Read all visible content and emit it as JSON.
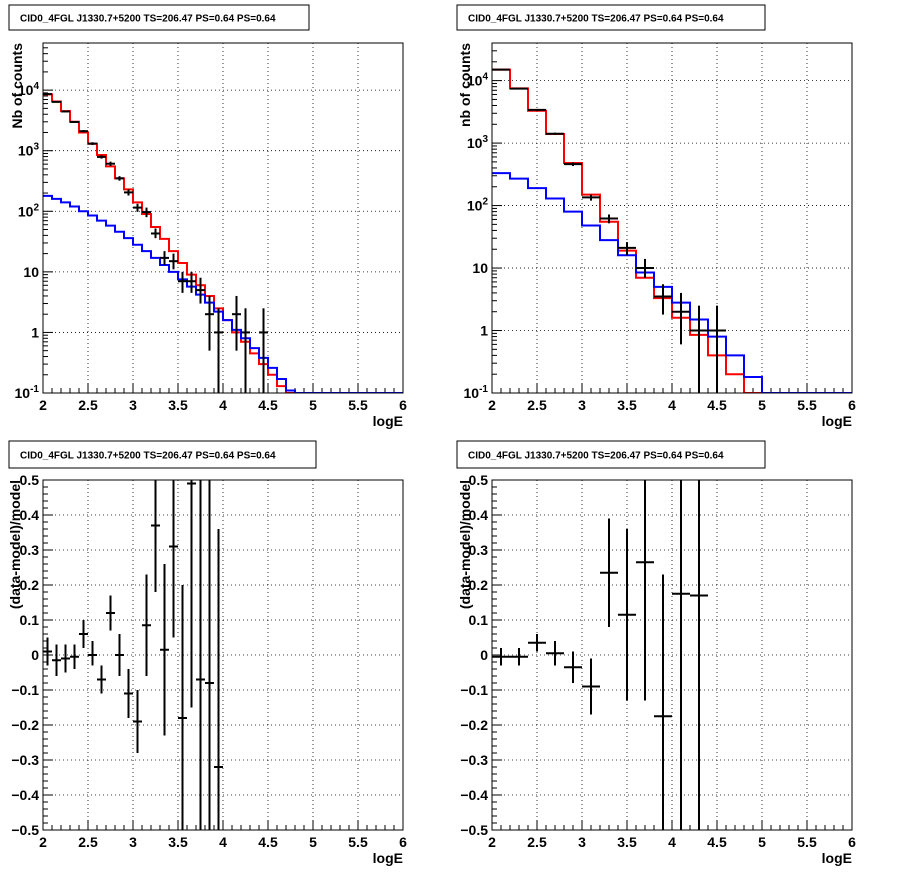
{
  "title": "CID0_4FGL J1330.7+5200 TS=206.47 PS=0.64 PS=0.64",
  "colors": {
    "data": "#000000",
    "total_model": "#ff0000",
    "source_model": "#0000ff",
    "grid": "#000000"
  },
  "chart_data": [
    {
      "id": "counts-fine",
      "type": "histogram",
      "title": "CID0_4FGL J1330.7+5200 TS=206.47 PS=0.64 PS=0.64",
      "xlabel": "logE",
      "ylabel": "Nb of counts",
      "xlim": [
        2,
        6
      ],
      "ylim": [
        0.1,
        60000
      ],
      "yscale": "log",
      "grid": true,
      "xticks": [
        "2",
        "2.5",
        "3",
        "3.5",
        "4",
        "4.5",
        "5",
        "5.5",
        "6"
      ],
      "yticks": [
        {
          "value": 0.1,
          "base": "10",
          "exp": "-1"
        },
        {
          "value": 1,
          "label": "1"
        },
        {
          "value": 10,
          "label": "10"
        },
        {
          "value": 100,
          "base": "10",
          "exp": "2"
        },
        {
          "value": 1000,
          "base": "10",
          "exp": "3"
        },
        {
          "value": 10000,
          "base": "10",
          "exp": "4"
        }
      ],
      "bin_edges": [
        2.0,
        2.1,
        2.2,
        2.3,
        2.4,
        2.5,
        2.6,
        2.7,
        2.8,
        2.9,
        3.0,
        3.1,
        3.2,
        3.3,
        3.4,
        3.5,
        3.6,
        3.7,
        3.8,
        3.9,
        4.0,
        4.1,
        4.2,
        4.3,
        4.4,
        4.5,
        4.6,
        4.7,
        4.8,
        4.9,
        5.0,
        5.1,
        5.2,
        5.3,
        5.4,
        5.5,
        5.6,
        5.7,
        5.8,
        5.9,
        6.0
      ],
      "series": [
        {
          "kind": "step",
          "role": "total_model",
          "values": [
            8500,
            6500,
            4500,
            3000,
            2000,
            1300,
            850,
            550,
            350,
            230,
            140,
            90,
            55,
            35,
            22,
            14,
            9,
            6,
            4,
            2.5,
            1.6,
            1.0,
            0.7,
            0.45,
            0.3,
            0.2,
            0.13,
            0.1,
            0.1,
            0.1,
            0.1,
            0.1,
            0.1,
            0.1,
            0.1,
            0.1,
            0.1,
            0.1,
            0.1,
            0.1
          ]
        },
        {
          "kind": "step",
          "role": "source_model",
          "values": [
            180,
            160,
            140,
            120,
            100,
            85,
            70,
            58,
            46,
            36,
            28,
            22,
            17,
            13,
            10,
            7.5,
            5.7,
            4.2,
            3.1,
            2.2,
            1.6,
            1.1,
            0.8,
            0.55,
            0.38,
            0.26,
            0.17,
            0.11,
            0.1,
            0.1,
            0.1,
            0.1,
            0.1,
            0.1,
            0.1,
            0.1,
            0.1,
            0.1,
            0.1,
            0.1
          ]
        },
        {
          "kind": "points",
          "role": "data",
          "points": [
            {
              "x": 2.05,
              "y": 8600,
              "ylo": 8400,
              "yhi": 8800
            },
            {
              "x": 2.15,
              "y": 6400,
              "ylo": 6250,
              "yhi": 6550
            },
            {
              "x": 2.25,
              "y": 4450,
              "ylo": 4320,
              "yhi": 4580
            },
            {
              "x": 2.35,
              "y": 2980,
              "ylo": 2880,
              "yhi": 3080
            },
            {
              "x": 2.45,
              "y": 2100,
              "ylo": 2010,
              "yhi": 2190
            },
            {
              "x": 2.55,
              "y": 1310,
              "ylo": 1240,
              "yhi": 1380
            },
            {
              "x": 2.65,
              "y": 790,
              "ylo": 740,
              "yhi": 840
            },
            {
              "x": 2.75,
              "y": 610,
              "ylo": 560,
              "yhi": 660
            },
            {
              "x": 2.85,
              "y": 350,
              "ylo": 320,
              "yhi": 380
            },
            {
              "x": 2.95,
              "y": 205,
              "ylo": 182,
              "yhi": 230
            },
            {
              "x": 3.05,
              "y": 115,
              "ylo": 98,
              "yhi": 133
            },
            {
              "x": 3.15,
              "y": 97,
              "ylo": 80,
              "yhi": 115
            },
            {
              "x": 3.25,
              "y": 43,
              "ylo": 36,
              "yhi": 52
            },
            {
              "x": 3.35,
              "y": 17,
              "ylo": 13,
              "yhi": 22
            },
            {
              "x": 3.45,
              "y": 15,
              "ylo": 11,
              "yhi": 20
            },
            {
              "x": 3.55,
              "y": 7,
              "ylo": 4.5,
              "yhi": 10
            },
            {
              "x": 3.65,
              "y": 7,
              "ylo": 4.5,
              "yhi": 10
            },
            {
              "x": 3.75,
              "y": 5,
              "ylo": 3,
              "yhi": 8
            },
            {
              "x": 3.85,
              "y": 2,
              "ylo": 0.5,
              "yhi": 4
            },
            {
              "x": 3.95,
              "y": 1,
              "ylo": 0.1,
              "yhi": 2.5
            },
            {
              "x": 4.15,
              "y": 2,
              "ylo": 0.5,
              "yhi": 4
            },
            {
              "x": 4.25,
              "y": 1,
              "ylo": 0.1,
              "yhi": 2.5
            },
            {
              "x": 4.45,
              "y": 1,
              "ylo": 0.1,
              "yhi": 2.5
            }
          ]
        }
      ]
    },
    {
      "id": "counts-coarse",
      "type": "histogram",
      "title": "CID0_4FGL J1330.7+5200 TS=206.47 PS=0.64 PS=0.64",
      "xlabel": "logE",
      "ylabel": "nb of counts",
      "xlim": [
        2,
        6
      ],
      "ylim": [
        0.1,
        40000
      ],
      "yscale": "log",
      "grid": true,
      "xticks": [
        "2",
        "2.5",
        "3",
        "3.5",
        "4",
        "4.5",
        "5",
        "5.5",
        "6"
      ],
      "yticks": [
        {
          "value": 0.1,
          "base": "10",
          "exp": "-1"
        },
        {
          "value": 1,
          "label": "1"
        },
        {
          "value": 10,
          "label": "10"
        },
        {
          "value": 100,
          "base": "10",
          "exp": "2"
        },
        {
          "value": 1000,
          "base": "10",
          "exp": "3"
        },
        {
          "value": 10000,
          "base": "10",
          "exp": "4"
        }
      ],
      "bin_edges": [
        2.0,
        2.2,
        2.4,
        2.6,
        2.8,
        3.0,
        3.2,
        3.4,
        3.6,
        3.8,
        4.0,
        4.2,
        4.4,
        4.6,
        4.8,
        5.0,
        5.2,
        5.4,
        5.6,
        5.8,
        6.0
      ],
      "series": [
        {
          "kind": "step",
          "role": "total_model",
          "values": [
            15000,
            7500,
            3300,
            1400,
            480,
            150,
            55,
            19,
            7,
            3.3,
            1.6,
            0.85,
            0.4,
            0.2,
            0.1,
            0.1,
            0.1,
            0.1,
            0.1,
            0.1
          ]
        },
        {
          "kind": "step",
          "role": "source_model",
          "values": [
            330,
            270,
            190,
            130,
            80,
            48,
            28,
            16,
            8.5,
            5,
            2.8,
            1.5,
            0.8,
            0.4,
            0.18,
            0.1,
            0.1,
            0.1,
            0.1,
            0.1
          ]
        },
        {
          "kind": "points",
          "role": "data",
          "points": [
            {
              "x": 2.1,
              "y": 15000,
              "ylo": 14800,
              "yhi": 15200
            },
            {
              "x": 2.3,
              "y": 7450,
              "ylo": 7300,
              "yhi": 7600
            },
            {
              "x": 2.5,
              "y": 3400,
              "ylo": 3300,
              "yhi": 3500
            },
            {
              "x": 2.7,
              "y": 1410,
              "ylo": 1350,
              "yhi": 1470
            },
            {
              "x": 2.9,
              "y": 460,
              "ylo": 430,
              "yhi": 490
            },
            {
              "x": 3.1,
              "y": 135,
              "ylo": 120,
              "yhi": 150
            },
            {
              "x": 3.3,
              "y": 62,
              "ylo": 52,
              "yhi": 72
            },
            {
              "x": 3.5,
              "y": 21,
              "ylo": 16,
              "yhi": 26
            },
            {
              "x": 3.7,
              "y": 10,
              "ylo": 7,
              "yhi": 14
            },
            {
              "x": 3.9,
              "y": 3.5,
              "ylo": 1.8,
              "yhi": 5.5
            },
            {
              "x": 4.1,
              "y": 2,
              "ylo": 0.6,
              "yhi": 4
            },
            {
              "x": 4.3,
              "y": 1,
              "ylo": 0.1,
              "yhi": 2.5
            },
            {
              "x": 4.5,
              "y": 1,
              "ylo": 0.1,
              "yhi": 2.5
            }
          ]
        }
      ]
    },
    {
      "id": "residuals-fine",
      "type": "scatter",
      "title": "CID0_4FGL J1330.7+5200 TS=206.47 PS=0.64 PS=0.64",
      "xlabel": "logE",
      "ylabel": "(data-model)/model",
      "xlim": [
        2,
        6
      ],
      "ylim": [
        -0.5,
        0.5
      ],
      "yscale": "linear",
      "grid": true,
      "xticks": [
        "2",
        "2.5",
        "3",
        "3.5",
        "4",
        "4.5",
        "5",
        "5.5",
        "6"
      ],
      "yticks": [
        {
          "value": -0.5,
          "label": "−0.5"
        },
        {
          "value": -0.4,
          "label": "−0.4"
        },
        {
          "value": -0.3,
          "label": "−0.3"
        },
        {
          "value": -0.2,
          "label": "−0.2"
        },
        {
          "value": -0.1,
          "label": "−0.1"
        },
        {
          "value": 0,
          "label": "0"
        },
        {
          "value": 0.1,
          "label": "0.1"
        },
        {
          "value": 0.2,
          "label": "0.2"
        },
        {
          "value": 0.3,
          "label": "0.3"
        },
        {
          "value": 0.4,
          "label": "0.4"
        },
        {
          "value": 0.5,
          "label": "0.5"
        }
      ],
      "series": [
        {
          "kind": "points",
          "role": "data",
          "xerr": 0.05,
          "points": [
            {
              "x": 2.05,
              "y": 0.01,
              "ylo": -0.03,
              "yhi": 0.05
            },
            {
              "x": 2.15,
              "y": -0.015,
              "ylo": -0.06,
              "yhi": 0.03
            },
            {
              "x": 2.25,
              "y": -0.01,
              "ylo": -0.05,
              "yhi": 0.03
            },
            {
              "x": 2.35,
              "y": -0.005,
              "ylo": -0.04,
              "yhi": 0.03
            },
            {
              "x": 2.45,
              "y": 0.06,
              "ylo": 0.02,
              "yhi": 0.1
            },
            {
              "x": 2.55,
              "y": 0.0,
              "ylo": -0.03,
              "yhi": 0.04
            },
            {
              "x": 2.65,
              "y": -0.07,
              "ylo": -0.11,
              "yhi": -0.03
            },
            {
              "x": 2.75,
              "y": 0.12,
              "ylo": 0.07,
              "yhi": 0.17
            },
            {
              "x": 2.85,
              "y": 0.0,
              "ylo": -0.06,
              "yhi": 0.06
            },
            {
              "x": 2.95,
              "y": -0.11,
              "ylo": -0.18,
              "yhi": -0.04
            },
            {
              "x": 3.05,
              "y": -0.19,
              "ylo": -0.28,
              "yhi": -0.1
            },
            {
              "x": 3.15,
              "y": 0.085,
              "ylo": -0.06,
              "yhi": 0.23
            },
            {
              "x": 3.25,
              "y": 0.37,
              "ylo": 0.18,
              "yhi": 0.5
            },
            {
              "x": 3.35,
              "y": 0.015,
              "ylo": -0.23,
              "yhi": 0.26
            },
            {
              "x": 3.45,
              "y": 0.31,
              "ylo": 0.05,
              "yhi": 0.5
            },
            {
              "x": 3.55,
              "y": -0.18,
              "ylo": -0.5,
              "yhi": 0.2
            },
            {
              "x": 3.65,
              "y": 0.49,
              "ylo": -0.15,
              "yhi": 0.5
            },
            {
              "x": 3.75,
              "y": -0.07,
              "ylo": -0.5,
              "yhi": 0.5
            },
            {
              "x": 3.85,
              "y": -0.08,
              "ylo": -0.5,
              "yhi": 0.5
            },
            {
              "x": 3.95,
              "y": -0.32,
              "ylo": -0.5,
              "yhi": 0.36
            }
          ]
        }
      ]
    },
    {
      "id": "residuals-coarse",
      "type": "scatter",
      "title": "CID0_4FGL J1330.7+5200 TS=206.47 PS=0.64 PS=0.64",
      "xlabel": "logE",
      "ylabel": "(data-model)/model",
      "xlim": [
        2,
        6
      ],
      "ylim": [
        -0.5,
        0.5
      ],
      "yscale": "linear",
      "grid": true,
      "xticks": [
        "2",
        "2.5",
        "3",
        "3.5",
        "4",
        "4.5",
        "5",
        "5.5",
        "6"
      ],
      "yticks": [
        {
          "value": -0.5,
          "label": "−0.5"
        },
        {
          "value": -0.4,
          "label": "−0.4"
        },
        {
          "value": -0.3,
          "label": "−0.3"
        },
        {
          "value": -0.2,
          "label": "−0.2"
        },
        {
          "value": -0.1,
          "label": "−0.1"
        },
        {
          "value": 0,
          "label": "0"
        },
        {
          "value": 0.1,
          "label": "0.1"
        },
        {
          "value": 0.2,
          "label": "0.2"
        },
        {
          "value": 0.3,
          "label": "0.3"
        },
        {
          "value": 0.4,
          "label": "0.4"
        },
        {
          "value": 0.5,
          "label": "0.5"
        }
      ],
      "series": [
        {
          "kind": "points",
          "role": "data",
          "xerr": 0.1,
          "points": [
            {
              "x": 2.1,
              "y": -0.005,
              "ylo": -0.03,
              "yhi": 0.02
            },
            {
              "x": 2.3,
              "y": -0.005,
              "ylo": -0.03,
              "yhi": 0.02
            },
            {
              "x": 2.5,
              "y": 0.035,
              "ylo": 0.01,
              "yhi": 0.06
            },
            {
              "x": 2.7,
              "y": 0.005,
              "ylo": -0.03,
              "yhi": 0.04
            },
            {
              "x": 2.9,
              "y": -0.035,
              "ylo": -0.08,
              "yhi": 0.01
            },
            {
              "x": 3.1,
              "y": -0.09,
              "ylo": -0.17,
              "yhi": -0.01
            },
            {
              "x": 3.3,
              "y": 0.235,
              "ylo": 0.08,
              "yhi": 0.39
            },
            {
              "x": 3.5,
              "y": 0.115,
              "ylo": -0.13,
              "yhi": 0.36
            },
            {
              "x": 3.7,
              "y": 0.265,
              "ylo": -0.13,
              "yhi": 0.5
            },
            {
              "x": 3.9,
              "y": -0.175,
              "ylo": -0.5,
              "yhi": 0.23
            },
            {
              "x": 4.1,
              "y": 0.175,
              "ylo": -0.5,
              "yhi": 0.5
            },
            {
              "x": 4.3,
              "y": 0.17,
              "ylo": -0.5,
              "yhi": 0.5
            }
          ]
        }
      ]
    }
  ]
}
